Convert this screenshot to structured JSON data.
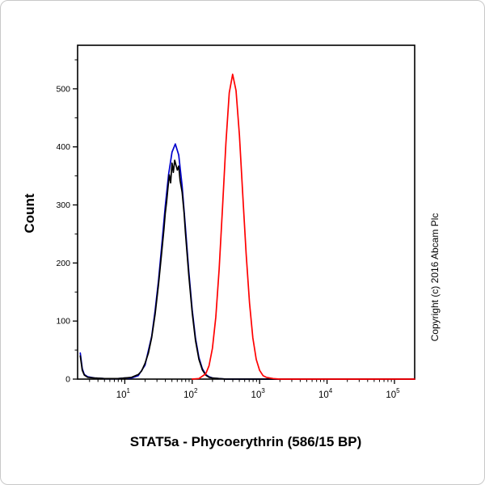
{
  "page": {
    "background": "#ffffff"
  },
  "chart_data": {
    "type": "line",
    "subtype": "flow-cytometry-histogram",
    "title": "",
    "xlabel": "STAT5a - Phycoerythrin (586/15 BP)",
    "ylabel": "Count",
    "watermark": "Copyright (c) 2016 Abcam Plc",
    "x_scale": "log10",
    "x_range_log10": [
      0.3,
      5.3
    ],
    "ylim": [
      0,
      575
    ],
    "y_ticks": [
      0,
      100,
      200,
      300,
      400,
      500
    ],
    "y_minor_ticks": [
      50,
      150,
      250,
      350,
      450,
      550
    ],
    "x_major_ticks_log10": [
      1,
      2,
      3,
      4,
      5
    ],
    "x_tick_base": "10",
    "grid": false,
    "legend": "none",
    "axis_color": "#000000",
    "series": [
      {
        "name": "blue",
        "color": "#0000cc",
        "peak_x": 56,
        "peak_count": 405,
        "points_log10x_count": [
          [
            0.34,
            45
          ],
          [
            0.37,
            18
          ],
          [
            0.4,
            8
          ],
          [
            0.45,
            4
          ],
          [
            0.55,
            2
          ],
          [
            0.7,
            1
          ],
          [
            0.9,
            1
          ],
          [
            1.0,
            2
          ],
          [
            1.1,
            2
          ],
          [
            1.2,
            6
          ],
          [
            1.3,
            24
          ],
          [
            1.4,
            74
          ],
          [
            1.45,
            118
          ],
          [
            1.5,
            170
          ],
          [
            1.55,
            233
          ],
          [
            1.6,
            297
          ],
          [
            1.65,
            353
          ],
          [
            1.7,
            391
          ],
          [
            1.75,
            405
          ],
          [
            1.8,
            386
          ],
          [
            1.85,
            333
          ],
          [
            1.9,
            261
          ],
          [
            1.95,
            185
          ],
          [
            2.0,
            119
          ],
          [
            2.05,
            70
          ],
          [
            2.1,
            37
          ],
          [
            2.15,
            18
          ],
          [
            2.2,
            8
          ],
          [
            2.25,
            4
          ],
          [
            2.3,
            2
          ],
          [
            2.4,
            1
          ],
          [
            2.5,
            0
          ],
          [
            5.3,
            0
          ]
        ]
      },
      {
        "name": "black",
        "color": "#000000",
        "peak_x": 55,
        "peak_count": 377,
        "points_log10x_count": [
          [
            0.34,
            40
          ],
          [
            0.37,
            15
          ],
          [
            0.4,
            7
          ],
          [
            0.45,
            3
          ],
          [
            0.55,
            2
          ],
          [
            0.7,
            1
          ],
          [
            0.9,
            1
          ],
          [
            1.0,
            2
          ],
          [
            1.1,
            3
          ],
          [
            1.2,
            8
          ],
          [
            1.25,
            14
          ],
          [
            1.3,
            27
          ],
          [
            1.35,
            45
          ],
          [
            1.4,
            72
          ],
          [
            1.45,
            112
          ],
          [
            1.5,
            163
          ],
          [
            1.55,
            222
          ],
          [
            1.58,
            258
          ],
          [
            1.6,
            285
          ],
          [
            1.62,
            305
          ],
          [
            1.64,
            330
          ],
          [
            1.66,
            352
          ],
          [
            1.68,
            338
          ],
          [
            1.7,
            372
          ],
          [
            1.72,
            356
          ],
          [
            1.74,
            377
          ],
          [
            1.76,
            368
          ],
          [
            1.78,
            360
          ],
          [
            1.8,
            367
          ],
          [
            1.82,
            342
          ],
          [
            1.85,
            322
          ],
          [
            1.88,
            285
          ],
          [
            1.9,
            252
          ],
          [
            1.95,
            178
          ],
          [
            2.0,
            114
          ],
          [
            2.05,
            66
          ],
          [
            2.1,
            34
          ],
          [
            2.15,
            16
          ],
          [
            2.2,
            7
          ],
          [
            2.25,
            3
          ],
          [
            2.3,
            2
          ],
          [
            2.4,
            1
          ],
          [
            2.5,
            0
          ],
          [
            5.3,
            0
          ]
        ]
      },
      {
        "name": "red",
        "color": "#ff0000",
        "peak_x": 400,
        "peak_count": 525,
        "points_log10x_count": [
          [
            2.0,
            0
          ],
          [
            2.1,
            1
          ],
          [
            2.2,
            9
          ],
          [
            2.25,
            23
          ],
          [
            2.3,
            53
          ],
          [
            2.35,
            107
          ],
          [
            2.4,
            189
          ],
          [
            2.45,
            296
          ],
          [
            2.5,
            407
          ],
          [
            2.55,
            493
          ],
          [
            2.6,
            525
          ],
          [
            2.65,
            497
          ],
          [
            2.7,
            420
          ],
          [
            2.75,
            318
          ],
          [
            2.8,
            216
          ],
          [
            2.85,
            131
          ],
          [
            2.9,
            71
          ],
          [
            2.95,
            34
          ],
          [
            3.0,
            15
          ],
          [
            3.05,
            6
          ],
          [
            3.1,
            3
          ],
          [
            3.2,
            1
          ],
          [
            3.3,
            0
          ],
          [
            5.3,
            0
          ]
        ]
      }
    ]
  }
}
